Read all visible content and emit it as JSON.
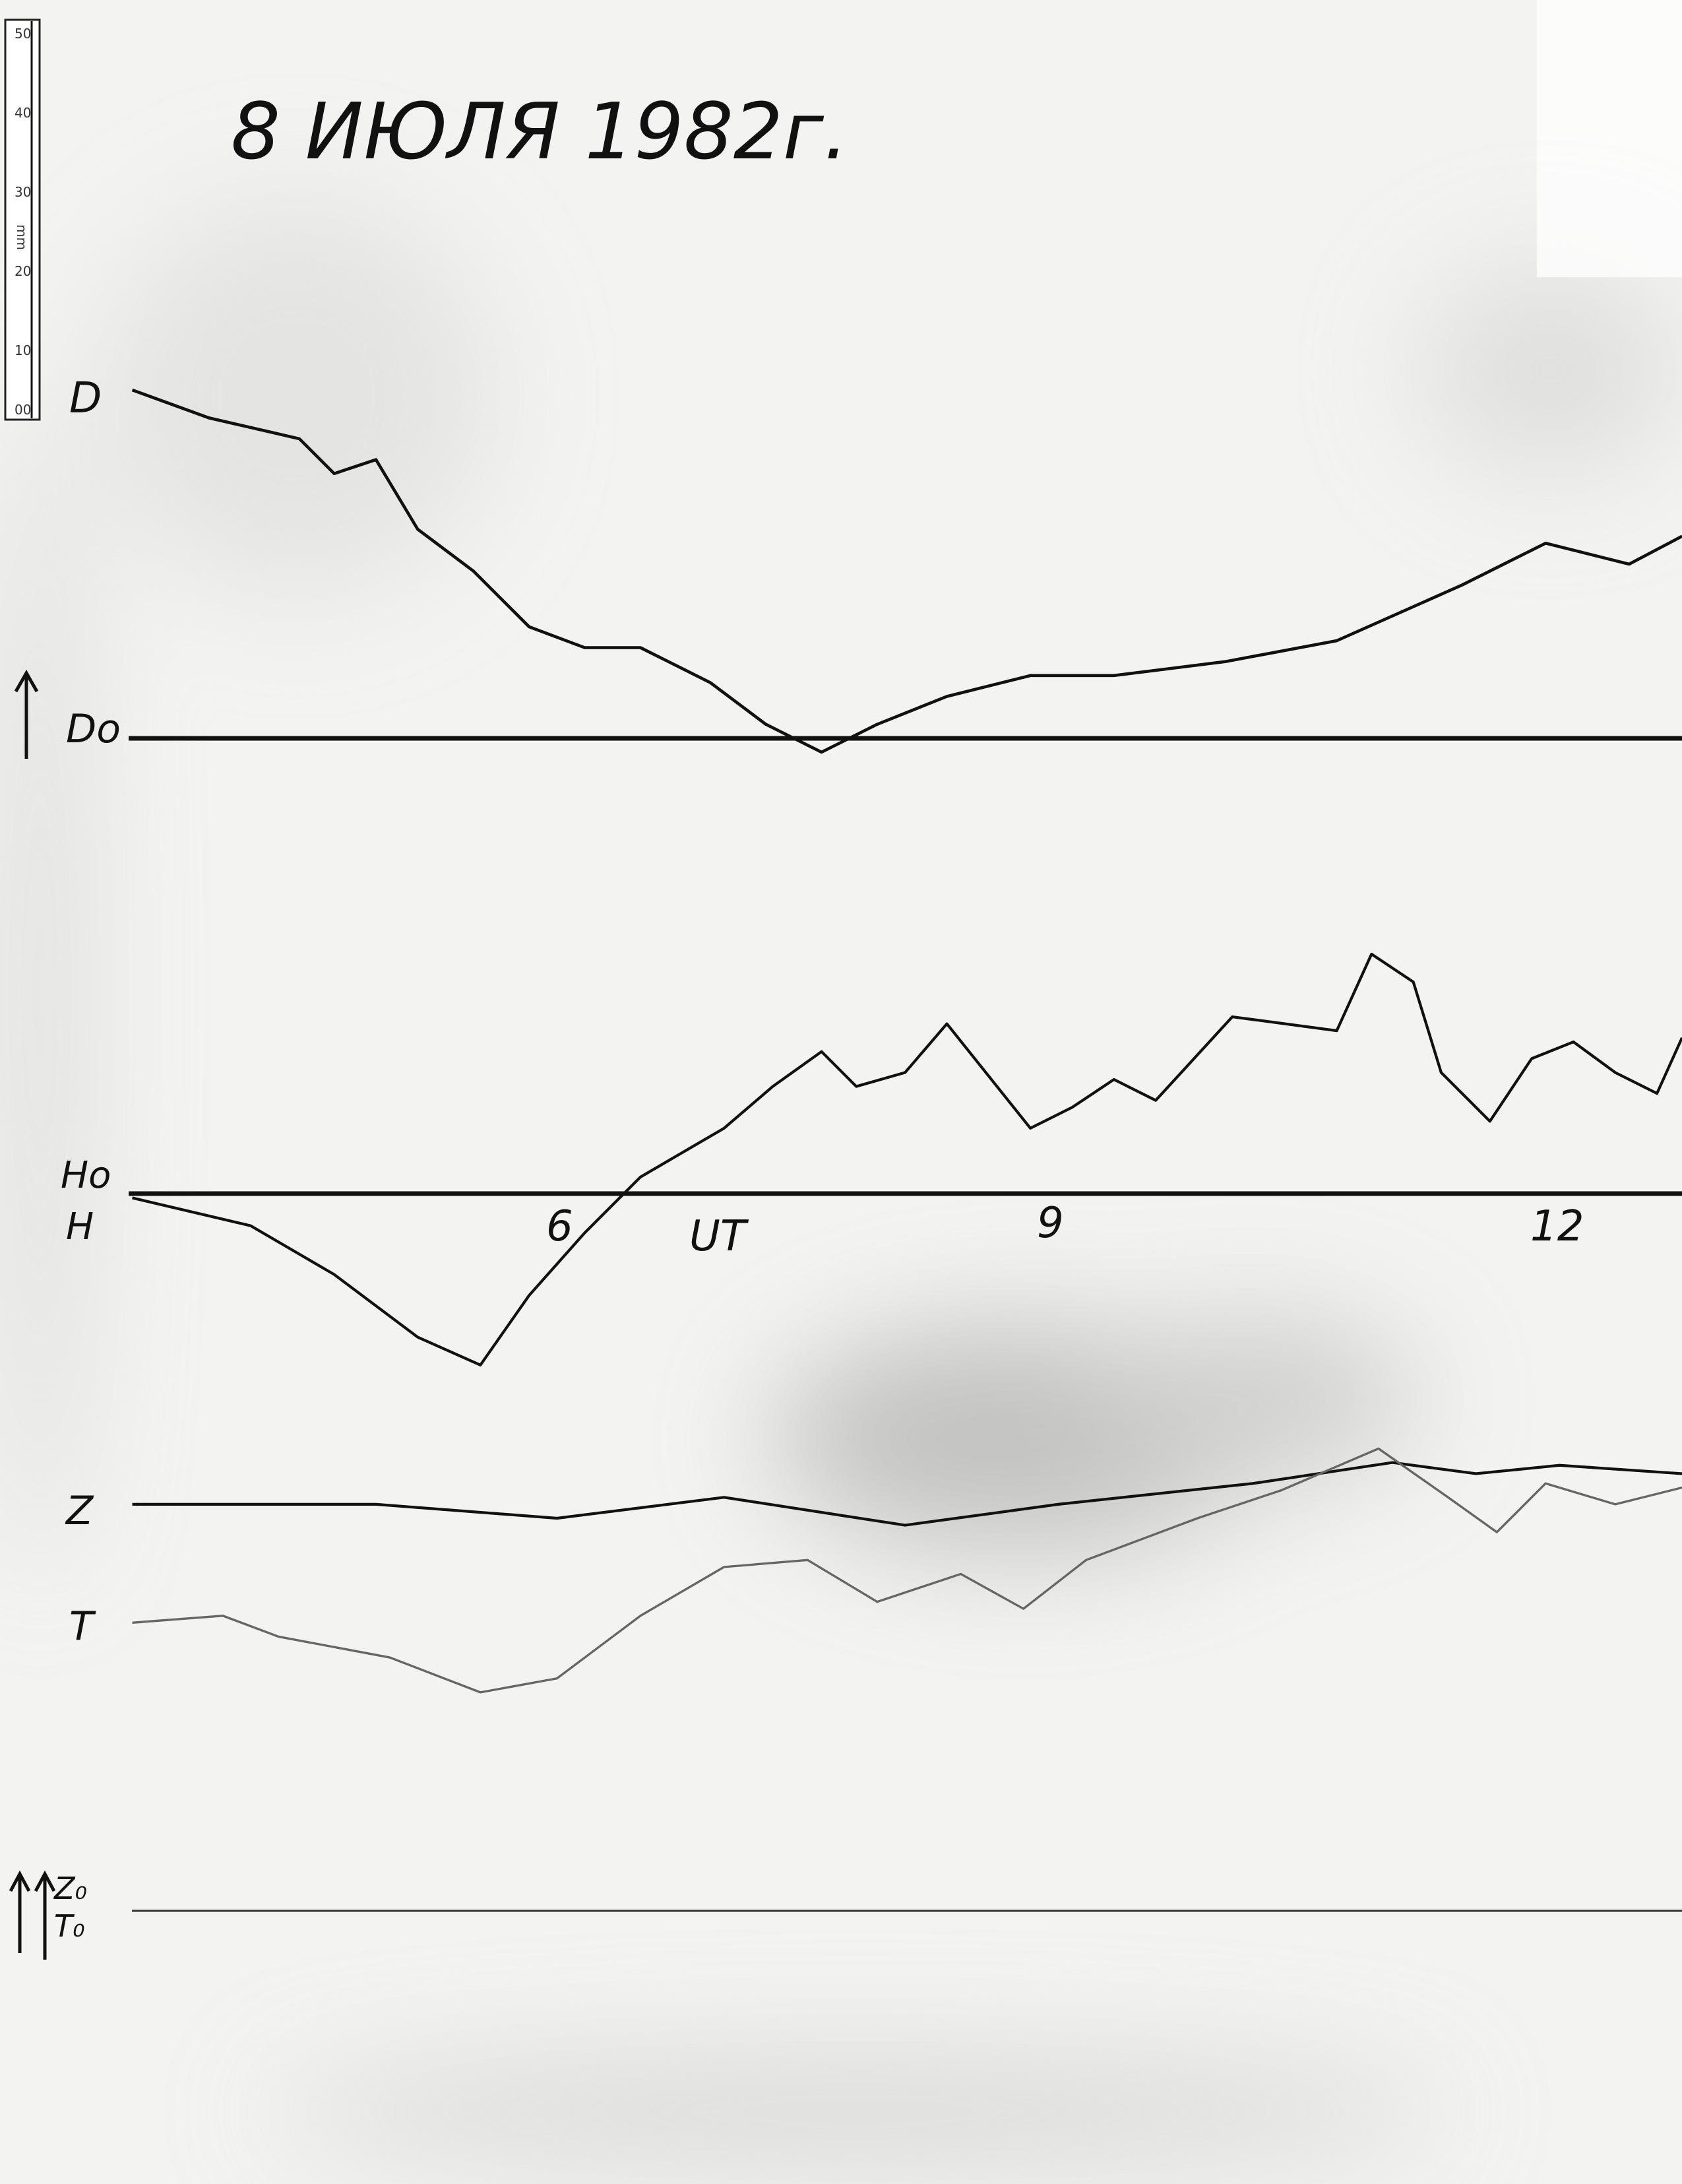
{
  "title": "8 ИЮЛЯ 1982г.",
  "ruler": {
    "ticks": [
      "50",
      "40",
      "30",
      "20",
      "10",
      "00"
    ],
    "unit": "mm"
  },
  "traces": {
    "D": "D",
    "D0": "Do",
    "H0": "Ho",
    "H": "H",
    "Z": "Z",
    "T": "T",
    "Z0": "Z₀",
    "T0": "T₀"
  },
  "time_axis": {
    "ticks": [
      "6",
      "9",
      "12"
    ],
    "label": "UT"
  }
}
